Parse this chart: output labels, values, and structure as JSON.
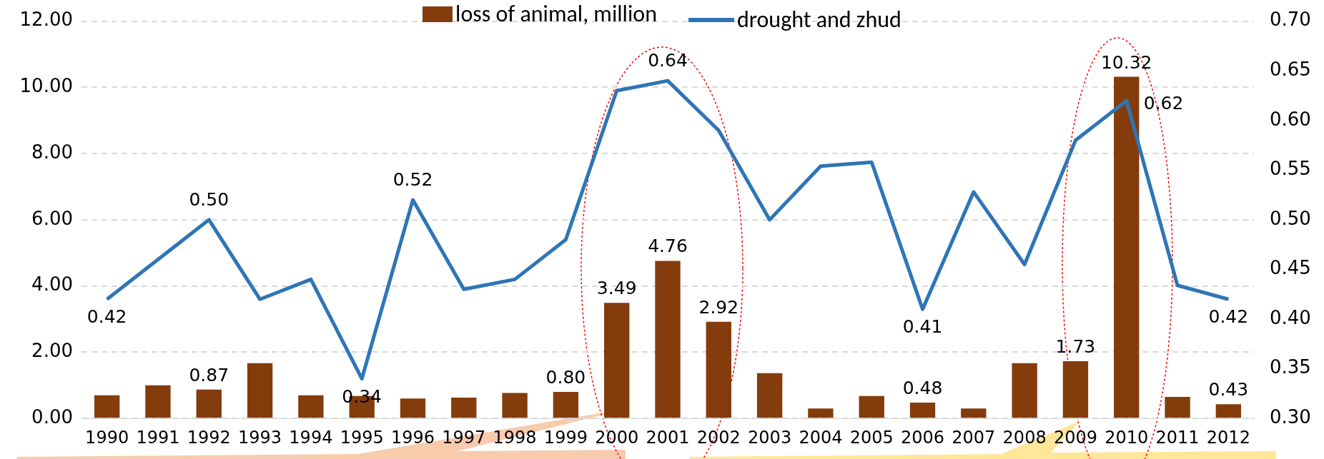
{
  "chart_data": {
    "type": "bar",
    "categories": [
      "1990",
      "1991",
      "1992",
      "1993",
      "1994",
      "1995",
      "1996",
      "1997",
      "1998",
      "1999",
      "2000",
      "2001",
      "2002",
      "2003",
      "2004",
      "2005",
      "2006",
      "2007",
      "2008",
      "2009",
      "2010",
      "2011",
      "2012"
    ],
    "series": [
      {
        "name": "loss of animal, million",
        "color": "#843c0c",
        "values": [
          0.7,
          1.0,
          0.87,
          1.67,
          0.7,
          0.68,
          0.6,
          0.63,
          0.77,
          0.8,
          3.49,
          4.76,
          2.92,
          1.37,
          0.3,
          0.68,
          0.48,
          0.3,
          1.67,
          1.73,
          10.32,
          0.65,
          0.43
        ],
        "value_labels": [
          null,
          null,
          "0.87",
          null,
          null,
          null,
          null,
          null,
          null,
          "0.80",
          "3.49",
          "4.76",
          "2.92",
          null,
          null,
          null,
          "0.48",
          null,
          null,
          "1.73",
          "10.32",
          null,
          "0.43"
        ]
      },
      {
        "name": "drought and zhud",
        "type": "line",
        "axis": "y2",
        "color": "#2e75b6",
        "values": [
          0.42,
          0.46,
          0.5,
          0.42,
          0.44,
          0.34,
          0.52,
          0.43,
          0.44,
          0.48,
          0.63,
          0.64,
          0.59,
          0.5,
          0.554,
          0.558,
          0.41,
          0.528,
          0.455,
          0.58,
          0.62,
          0.434,
          0.42
        ],
        "value_labels": [
          "0.42",
          null,
          "0.50",
          null,
          null,
          "0.34",
          "0.52",
          null,
          null,
          null,
          null,
          "0.64",
          null,
          null,
          null,
          null,
          "0.41",
          null,
          null,
          null,
          "0.62",
          null,
          "0.42"
        ]
      }
    ],
    "ylim": [
      0,
      12
    ],
    "yticks": [
      {
        "value": 0,
        "label": "0.00"
      },
      {
        "value": 2,
        "label": "2.00"
      },
      {
        "value": 4,
        "label": "4.00"
      },
      {
        "value": 6,
        "label": "6.00"
      },
      {
        "value": 8,
        "label": "8.00"
      },
      {
        "value": 10,
        "label": "10.00"
      },
      {
        "value": 12,
        "label": "12.00"
      }
    ],
    "y2lim": [
      0.3,
      0.7
    ],
    "y2ticks": [
      {
        "value": 0.3,
        "label": "0.30"
      },
      {
        "value": 0.35,
        "label": "0.35"
      },
      {
        "value": 0.4,
        "label": "0.40"
      },
      {
        "value": 0.45,
        "label": "0.45"
      },
      {
        "value": 0.5,
        "label": "0.50"
      },
      {
        "value": 0.55,
        "label": "0.55"
      },
      {
        "value": 0.6,
        "label": "0.60"
      },
      {
        "value": 0.65,
        "label": "0.65"
      },
      {
        "value": 0.7,
        "label": "0.70"
      }
    ],
    "grid": "y",
    "legend": "top",
    "marker": "none",
    "line_style": "solid"
  }
}
